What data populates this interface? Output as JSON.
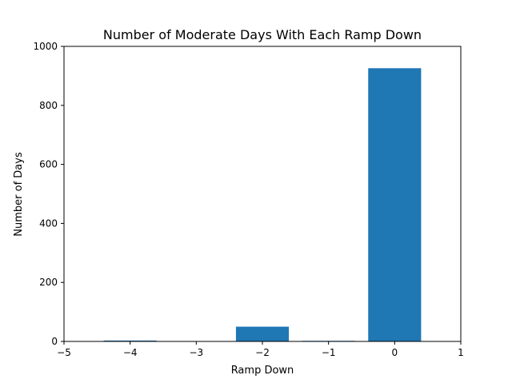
{
  "chart_data": {
    "type": "bar",
    "title": "Number of Moderate Days With Each Ramp Down",
    "xlabel": "Ramp Down",
    "ylabel": "Number of Days",
    "x": [
      -4,
      -3,
      -2,
      -1,
      0
    ],
    "values": [
      3,
      0,
      50,
      2,
      926
    ],
    "xlim": [
      -5,
      1
    ],
    "ylim": [
      0,
      1000
    ],
    "xticks": [
      -5,
      -4,
      -3,
      -2,
      -1,
      0,
      1
    ],
    "xtick_labels": [
      "−5",
      "−4",
      "−3",
      "−2",
      "−1",
      "0",
      "1"
    ],
    "yticks": [
      0,
      200,
      400,
      600,
      800,
      1000
    ],
    "ytick_labels": [
      "0",
      "200",
      "400",
      "600",
      "800",
      "1000"
    ],
    "bar_width": 0.8,
    "bar_color": "#1f77b4",
    "grid": false,
    "legend": "none"
  }
}
